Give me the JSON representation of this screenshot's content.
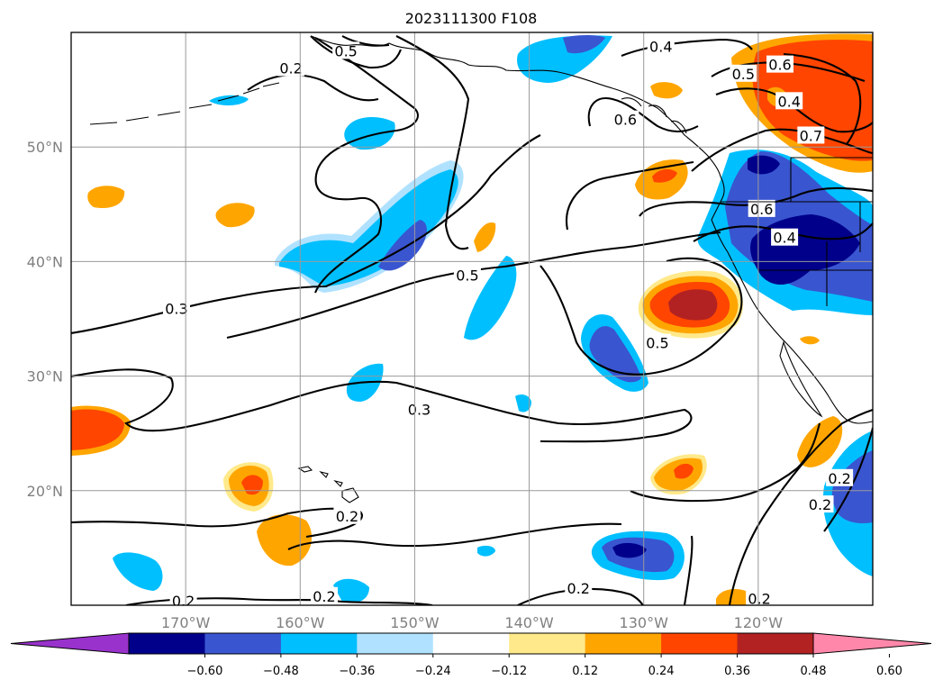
{
  "title": "2023111300 F108",
  "map": {
    "extent": {
      "lon_min": -180,
      "lon_max": -110,
      "lat_min": 10,
      "lat_max": 60
    },
    "lon_ticks": [
      {
        "value": -170,
        "label": "170°W"
      },
      {
        "value": -160,
        "label": "160°W"
      },
      {
        "value": -150,
        "label": "150°W"
      },
      {
        "value": -140,
        "label": "140°W"
      },
      {
        "value": -130,
        "label": "130°W"
      },
      {
        "value": -120,
        "label": "120°W"
      }
    ],
    "lat_ticks": [
      {
        "value": 20,
        "label": "20°N"
      },
      {
        "value": 30,
        "label": "30°N"
      },
      {
        "value": 40,
        "label": "40°N"
      },
      {
        "value": 50,
        "label": "50°N"
      }
    ],
    "grid": true,
    "contour_labels": [
      {
        "lon": -170.8,
        "lat": 35.9,
        "text": "0.3"
      },
      {
        "lon": -145.4,
        "lat": 38.8,
        "text": "0.5"
      },
      {
        "lon": -149.6,
        "lat": 27.1,
        "text": "0.3"
      },
      {
        "lon": -128.8,
        "lat": 32.9,
        "text": "0.5"
      },
      {
        "lon": -131.6,
        "lat": 52.4,
        "text": "0.6"
      },
      {
        "lon": -119.7,
        "lat": 44.6,
        "text": "0.6"
      },
      {
        "lon": -117.7,
        "lat": 42.1,
        "text": "0.4"
      },
      {
        "lon": -118.1,
        "lat": 57.2,
        "text": "0.6"
      },
      {
        "lon": -121.3,
        "lat": 56.4,
        "text": "0.5"
      },
      {
        "lon": -117.3,
        "lat": 54.0,
        "text": "0.4"
      },
      {
        "lon": -115.4,
        "lat": 51.0,
        "text": "0.7"
      },
      {
        "lon": -128.5,
        "lat": 58.8,
        "text": "0.4"
      },
      {
        "lon": -160.8,
        "lat": 56.9,
        "text": "0.2"
      },
      {
        "lon": -156.0,
        "lat": 58.4,
        "text": "0.5"
      },
      {
        "lon": -155.9,
        "lat": 17.8,
        "text": "0.2"
      },
      {
        "lon": -157.9,
        "lat": 10.8,
        "text": "0.2"
      },
      {
        "lon": -170.2,
        "lat": 10.4,
        "text": "0.2"
      },
      {
        "lon": -135.7,
        "lat": 11.5,
        "text": "0.2"
      },
      {
        "lon": -112.9,
        "lat": 21.1,
        "text": "0.2"
      },
      {
        "lon": -119.9,
        "lat": 10.6,
        "text": "0.2"
      },
      {
        "lon": -114.6,
        "lat": 18.8,
        "text": "0.2"
      }
    ]
  },
  "chart_data": {
    "type": "heatmap",
    "colorbar": {
      "extend": "both",
      "ticks": [
        "−0.60",
        "−0.48",
        "−0.36",
        "−0.24",
        "−0.12",
        "0.12",
        "0.24",
        "0.36",
        "0.48",
        "0.60"
      ],
      "colors": [
        "#9932cc",
        "#00008b",
        "#3a55d0",
        "#00bfff",
        "#b0e2ff",
        "#ffffff",
        "#ffe98a",
        "#ffa500",
        "#ff4500",
        "#b22222",
        "#ff88aa"
      ],
      "min": -0.72,
      "max": 0.72
    }
  }
}
